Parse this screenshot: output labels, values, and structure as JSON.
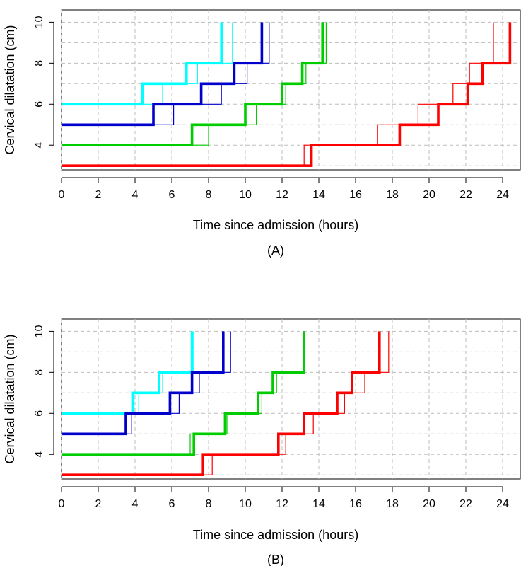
{
  "chart_data": [
    {
      "type": "line",
      "step": true,
      "panel_label": "(A)",
      "xlabel": "Time since admission (hours)",
      "ylabel": "Cervical dilatation (cm)",
      "xlim": [
        0,
        25
      ],
      "ylim": [
        2.8,
        10.6
      ],
      "xticks": [
        0,
        2,
        4,
        6,
        8,
        10,
        12,
        14,
        16,
        18,
        20,
        22,
        24
      ],
      "yticks": [
        4,
        6,
        8,
        10
      ],
      "grid": true,
      "series": [
        {
          "color": "#00FFFF",
          "weight": "thick",
          "points": [
            [
              0,
              6
            ],
            [
              4.4,
              6
            ],
            [
              4.4,
              7
            ],
            [
              6.8,
              7
            ],
            [
              6.8,
              8
            ],
            [
              8.7,
              8
            ],
            [
              8.7,
              10
            ]
          ]
        },
        {
          "color": "#00FFFF",
          "weight": "thin",
          "points": [
            [
              0,
              6
            ],
            [
              5.5,
              6
            ],
            [
              5.5,
              7
            ],
            [
              7.4,
              7
            ],
            [
              7.4,
              8
            ],
            [
              9.3,
              8
            ],
            [
              9.3,
              10
            ]
          ]
        },
        {
          "color": "#0000CD",
          "weight": "thick",
          "points": [
            [
              0,
              5
            ],
            [
              5.0,
              5
            ],
            [
              5.0,
              6
            ],
            [
              7.6,
              6
            ],
            [
              7.6,
              7
            ],
            [
              9.4,
              7
            ],
            [
              9.4,
              8
            ],
            [
              10.9,
              8
            ],
            [
              10.9,
              10
            ]
          ]
        },
        {
          "color": "#0000CD",
          "weight": "thin",
          "points": [
            [
              0,
              5
            ],
            [
              6.1,
              5
            ],
            [
              6.1,
              6
            ],
            [
              8.7,
              6
            ],
            [
              8.7,
              7
            ],
            [
              10.1,
              7
            ],
            [
              10.1,
              8
            ],
            [
              11.3,
              8
            ],
            [
              11.3,
              10
            ]
          ]
        },
        {
          "color": "#00CD00",
          "weight": "thick",
          "points": [
            [
              0,
              4
            ],
            [
              7.1,
              4
            ],
            [
              7.1,
              5
            ],
            [
              10.0,
              5
            ],
            [
              10.0,
              6
            ],
            [
              12.0,
              6
            ],
            [
              12.0,
              7
            ],
            [
              13.1,
              7
            ],
            [
              13.1,
              8
            ],
            [
              14.2,
              8
            ],
            [
              14.2,
              10
            ]
          ]
        },
        {
          "color": "#00CD00",
          "weight": "thin",
          "points": [
            [
              0,
              4
            ],
            [
              8.0,
              4
            ],
            [
              8.0,
              5
            ],
            [
              10.6,
              5
            ],
            [
              10.6,
              6
            ],
            [
              12.2,
              6
            ],
            [
              12.2,
              7
            ],
            [
              13.3,
              7
            ],
            [
              13.3,
              8
            ],
            [
              14.4,
              8
            ],
            [
              14.4,
              10
            ]
          ]
        },
        {
          "color": "#FF0000",
          "weight": "thick",
          "points": [
            [
              0,
              3
            ],
            [
              13.6,
              3
            ],
            [
              13.6,
              4
            ],
            [
              18.4,
              4
            ],
            [
              18.4,
              5
            ],
            [
              20.5,
              5
            ],
            [
              20.5,
              6
            ],
            [
              22.1,
              6
            ],
            [
              22.1,
              7
            ],
            [
              22.9,
              7
            ],
            [
              22.9,
              8
            ],
            [
              24.4,
              8
            ],
            [
              24.4,
              10
            ]
          ]
        },
        {
          "color": "#FF0000",
          "weight": "thin",
          "points": [
            [
              0,
              3
            ],
            [
              13.2,
              3
            ],
            [
              13.2,
              4
            ],
            [
              17.2,
              4
            ],
            [
              17.2,
              5
            ],
            [
              19.4,
              5
            ],
            [
              19.4,
              6
            ],
            [
              21.3,
              6
            ],
            [
              21.3,
              7
            ],
            [
              22.2,
              7
            ],
            [
              22.2,
              8
            ],
            [
              23.5,
              8
            ],
            [
              23.5,
              10
            ]
          ]
        }
      ]
    },
    {
      "type": "line",
      "step": true,
      "panel_label": "(B)",
      "xlabel": "Time since admission (hours)",
      "ylabel": "Cervical dilatation (cm)",
      "xlim": [
        0,
        25
      ],
      "ylim": [
        2.8,
        10.6
      ],
      "xticks": [
        0,
        2,
        4,
        6,
        8,
        10,
        12,
        14,
        16,
        18,
        20,
        22,
        24
      ],
      "yticks": [
        4,
        6,
        8,
        10
      ],
      "grid": true,
      "series": [
        {
          "color": "#00FFFF",
          "weight": "thick",
          "points": [
            [
              0,
              6
            ],
            [
              3.9,
              6
            ],
            [
              3.9,
              7
            ],
            [
              5.3,
              7
            ],
            [
              5.3,
              8
            ],
            [
              7.1,
              8
            ],
            [
              7.1,
              10
            ]
          ]
        },
        {
          "color": "#00FFFF",
          "weight": "thin",
          "points": [
            [
              0,
              6
            ],
            [
              4.2,
              6
            ],
            [
              4.2,
              7
            ],
            [
              5.5,
              7
            ],
            [
              5.5,
              8
            ],
            [
              7.2,
              8
            ],
            [
              7.2,
              10
            ]
          ]
        },
        {
          "color": "#0000CD",
          "weight": "thick",
          "points": [
            [
              0,
              5
            ],
            [
              3.5,
              5
            ],
            [
              3.5,
              6
            ],
            [
              5.9,
              6
            ],
            [
              5.9,
              7
            ],
            [
              7.1,
              7
            ],
            [
              7.1,
              8
            ],
            [
              8.8,
              8
            ],
            [
              8.8,
              10
            ]
          ]
        },
        {
          "color": "#0000CD",
          "weight": "thin",
          "points": [
            [
              0,
              5
            ],
            [
              3.8,
              5
            ],
            [
              3.8,
              6
            ],
            [
              6.4,
              6
            ],
            [
              6.4,
              7
            ],
            [
              7.5,
              7
            ],
            [
              7.5,
              8
            ],
            [
              9.2,
              8
            ],
            [
              9.2,
              10
            ]
          ]
        },
        {
          "color": "#00CD00",
          "weight": "thick",
          "points": [
            [
              0,
              4
            ],
            [
              7.2,
              4
            ],
            [
              7.2,
              5
            ],
            [
              8.9,
              5
            ],
            [
              8.9,
              6
            ],
            [
              10.7,
              6
            ],
            [
              10.7,
              7
            ],
            [
              11.5,
              7
            ],
            [
              11.5,
              8
            ],
            [
              13.2,
              8
            ],
            [
              13.2,
              10
            ]
          ]
        },
        {
          "color": "#00CD00",
          "weight": "thin",
          "points": [
            [
              0,
              4
            ],
            [
              7.0,
              4
            ],
            [
              7.0,
              5
            ],
            [
              9.0,
              5
            ],
            [
              9.0,
              6
            ],
            [
              10.9,
              6
            ],
            [
              10.9,
              7
            ],
            [
              11.7,
              7
            ],
            [
              11.7,
              8
            ],
            [
              13.2,
              8
            ],
            [
              13.2,
              10
            ]
          ]
        },
        {
          "color": "#FF0000",
          "weight": "thick",
          "points": [
            [
              0,
              3
            ],
            [
              7.7,
              3
            ],
            [
              7.7,
              4
            ],
            [
              11.8,
              4
            ],
            [
              11.8,
              5
            ],
            [
              13.2,
              5
            ],
            [
              13.2,
              6
            ],
            [
              15.0,
              6
            ],
            [
              15.0,
              7
            ],
            [
              15.8,
              7
            ],
            [
              15.8,
              8
            ],
            [
              17.3,
              8
            ],
            [
              17.3,
              10
            ]
          ]
        },
        {
          "color": "#FF0000",
          "weight": "thin",
          "points": [
            [
              0,
              3
            ],
            [
              8.2,
              3
            ],
            [
              8.2,
              4
            ],
            [
              12.2,
              4
            ],
            [
              12.2,
              5
            ],
            [
              13.7,
              5
            ],
            [
              13.7,
              6
            ],
            [
              15.4,
              6
            ],
            [
              15.4,
              7
            ],
            [
              16.5,
              7
            ],
            [
              16.5,
              8
            ],
            [
              17.8,
              8
            ],
            [
              17.8,
              10
            ]
          ]
        }
      ]
    }
  ]
}
